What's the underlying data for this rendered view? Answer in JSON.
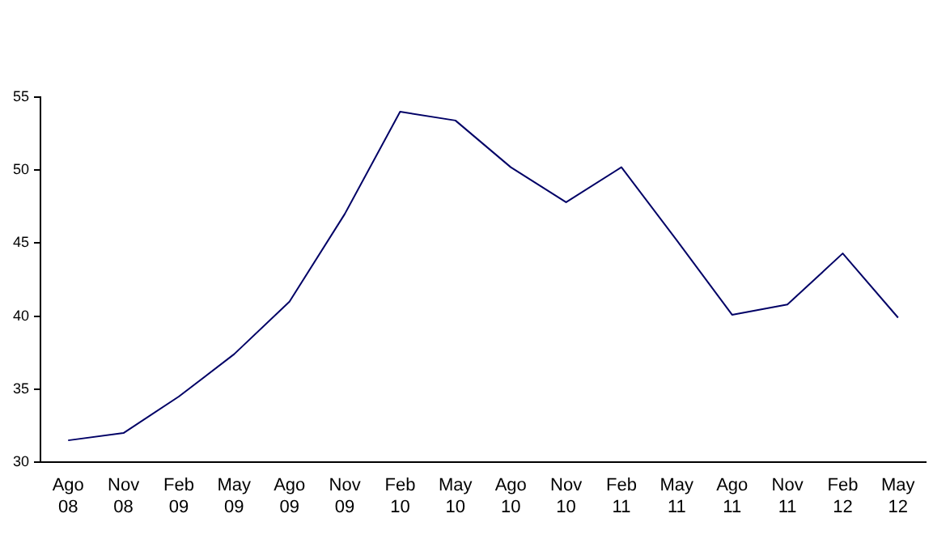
{
  "chart_data": {
    "type": "line",
    "categories": [
      "Ago\n08",
      "Nov\n08",
      "Feb\n09",
      "May\n09",
      "Ago\n09",
      "Nov\n09",
      "Feb\n10",
      "May\n10",
      "Ago\n10",
      "Nov\n10",
      "Feb\n11",
      "May\n11",
      "Ago\n11",
      "Nov\n11",
      "Feb\n12",
      "May\n12"
    ],
    "series": [
      {
        "color": "#000066",
        "values": [
          31.5,
          32.0,
          34.5,
          37.4,
          41.0,
          47.0,
          54.0,
          53.4,
          50.2,
          47.8,
          50.2,
          45.2,
          40.1,
          40.8,
          44.3,
          39.9
        ]
      }
    ],
    "ylim": [
      30,
      55
    ],
    "yticks": [
      30,
      35,
      40,
      45,
      50,
      55
    ],
    "grid": false,
    "legend": false,
    "marker": "none",
    "line_style": "solid"
  }
}
